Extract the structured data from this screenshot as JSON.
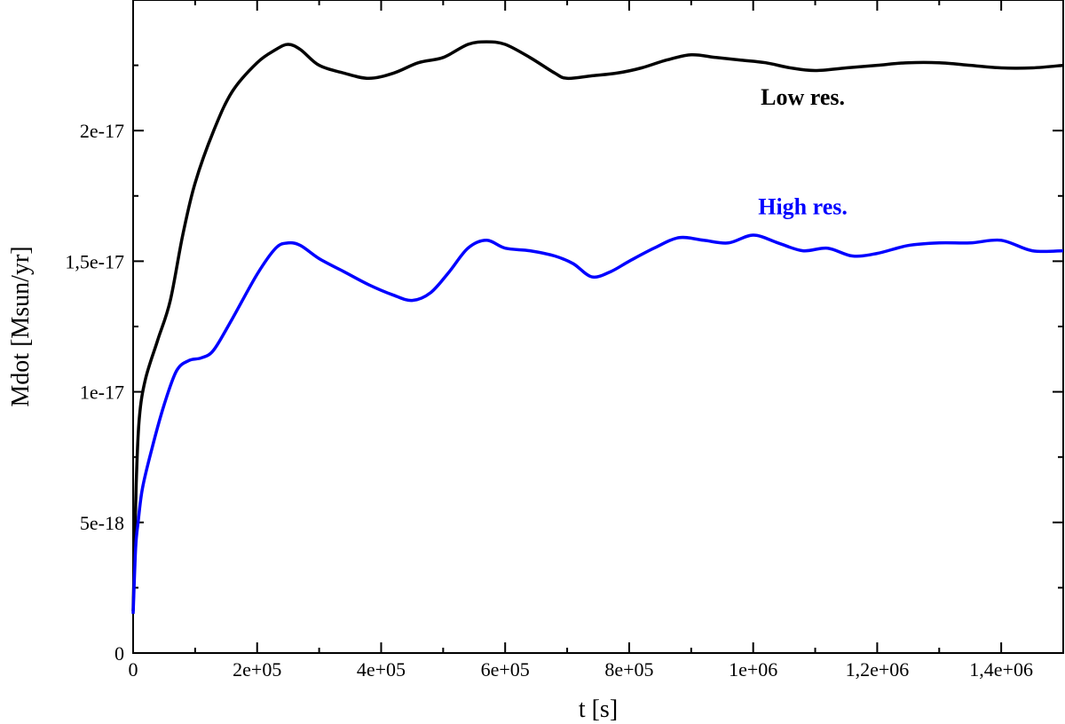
{
  "chart_data": {
    "type": "line",
    "title": "",
    "xlabel": "t [s]",
    "ylabel": "Mdot [Msun/yr]",
    "xlim": [
      0,
      1500000
    ],
    "ylim": [
      0,
      2.5e-17
    ],
    "grid": false,
    "x_ticks": [
      {
        "value": 0,
        "label": "0"
      },
      {
        "value": 200000,
        "label": "2e+05"
      },
      {
        "value": 400000,
        "label": "4e+05"
      },
      {
        "value": 600000,
        "label": "6e+05"
      },
      {
        "value": 800000,
        "label": "8e+05"
      },
      {
        "value": 1000000,
        "label": "1e+06"
      },
      {
        "value": 1200000,
        "label": "1,2e+06"
      },
      {
        "value": 1400000,
        "label": "1,4e+06"
      }
    ],
    "y_ticks": [
      {
        "value": 0,
        "label": "0"
      },
      {
        "value": 5e-18,
        "label": "5e-18"
      },
      {
        "value": 1e-17,
        "label": "1e-17"
      },
      {
        "value": 1.5e-17,
        "label": "1,5e-17"
      },
      {
        "value": 2e-17,
        "label": "2e-17"
      }
    ],
    "series": [
      {
        "name": "Low res.",
        "color": "#000000",
        "x": [
          0,
          5000,
          10000,
          20000,
          40000,
          60000,
          80000,
          100000,
          130000,
          160000,
          200000,
          230000,
          250000,
          270000,
          300000,
          340000,
          380000,
          420000,
          460000,
          500000,
          540000,
          570000,
          600000,
          640000,
          680000,
          700000,
          740000,
          780000,
          820000,
          860000,
          900000,
          940000,
          980000,
          1020000,
          1060000,
          1100000,
          1150000,
          1200000,
          1250000,
          1300000,
          1350000,
          1400000,
          1450000,
          1500000
        ],
        "y": [
          1.6e-18,
          6.5e-18,
          9e-18,
          1.05e-17,
          1.2e-17,
          1.35e-17,
          1.6e-17,
          1.8e-17,
          2e-17,
          2.15e-17,
          2.26e-17,
          2.31e-17,
          2.33e-17,
          2.31e-17,
          2.25e-17,
          2.22e-17,
          2.2e-17,
          2.22e-17,
          2.26e-17,
          2.28e-17,
          2.33e-17,
          2.34e-17,
          2.33e-17,
          2.28e-17,
          2.22e-17,
          2.2e-17,
          2.21e-17,
          2.22e-17,
          2.24e-17,
          2.27e-17,
          2.29e-17,
          2.28e-17,
          2.27e-17,
          2.26e-17,
          2.24e-17,
          2.23e-17,
          2.24e-17,
          2.25e-17,
          2.26e-17,
          2.26e-17,
          2.25e-17,
          2.24e-17,
          2.24e-17,
          2.25e-17
        ]
      },
      {
        "name": "High res.",
        "color": "#0000ff",
        "x": [
          0,
          4000,
          8000,
          15000,
          30000,
          50000,
          70000,
          90000,
          110000,
          130000,
          160000,
          200000,
          230000,
          250000,
          270000,
          300000,
          340000,
          380000,
          420000,
          450000,
          480000,
          510000,
          540000,
          570000,
          600000,
          640000,
          680000,
          710000,
          740000,
          770000,
          800000,
          840000,
          880000,
          920000,
          960000,
          1000000,
          1040000,
          1080000,
          1120000,
          1160000,
          1200000,
          1250000,
          1300000,
          1350000,
          1400000,
          1450000,
          1500000
        ],
        "y": [
          1.5e-18,
          4e-18,
          5e-18,
          6.3e-18,
          7.8e-18,
          9.5e-18,
          1.08e-17,
          1.12e-17,
          1.13e-17,
          1.16e-17,
          1.28e-17,
          1.45e-17,
          1.55e-17,
          1.57e-17,
          1.56e-17,
          1.51e-17,
          1.46e-17,
          1.41e-17,
          1.37e-17,
          1.35e-17,
          1.38e-17,
          1.46e-17,
          1.55e-17,
          1.58e-17,
          1.55e-17,
          1.54e-17,
          1.52e-17,
          1.49e-17,
          1.44e-17,
          1.46e-17,
          1.5e-17,
          1.55e-17,
          1.59e-17,
          1.58e-17,
          1.57e-17,
          1.6e-17,
          1.57e-17,
          1.54e-17,
          1.55e-17,
          1.52e-17,
          1.53e-17,
          1.56e-17,
          1.57e-17,
          1.57e-17,
          1.58e-17,
          1.54e-17,
          1.54e-17
        ]
      }
    ],
    "annotations": [
      {
        "text": "Low res.",
        "color": "#000000",
        "x": 1080000,
        "y": 2.1e-17
      },
      {
        "text": "High res.",
        "color": "#0000ff",
        "x": 1080000,
        "y": 1.68e-17
      }
    ]
  }
}
